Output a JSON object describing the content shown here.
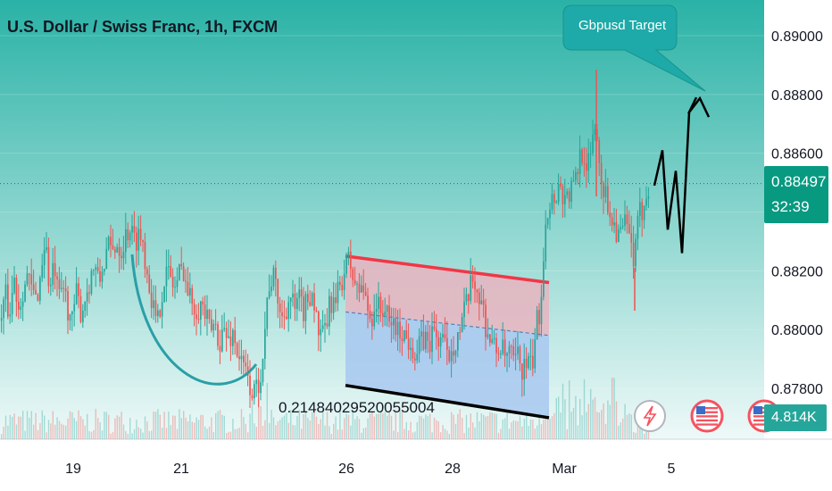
{
  "header": {
    "title": "U.S. Dollar / Swiss Franc, 1h, FXCM"
  },
  "current_price": {
    "value": "0.88497",
    "countdown": "32:39"
  },
  "volume_badge": {
    "value": "4.814K"
  },
  "annotation": {
    "callout_text": "Gbpusd Target",
    "flag_label": "0.21484029520055004"
  },
  "colors": {
    "up": "#26a69a",
    "down": "#ef5350",
    "accent": "#2ab0a6",
    "channel_top": "#f23645",
    "channel_fill_top": "#e8b4c0",
    "channel_fill_bottom": "#a8c8f0"
  },
  "icons": [
    "lightning-event-icon",
    "us-flag-event-icon",
    "us-flag-event-icon"
  ],
  "chart_data": {
    "type": "candlestick",
    "title": "U.S. Dollar / Swiss Franc, 1h, FXCM",
    "x_tick_labels": [
      "19",
      "21",
      "26",
      "28",
      "Mar",
      "5"
    ],
    "y_tick_labels": [
      "0.89000",
      "0.88800",
      "0.88600",
      "0.88400",
      "0.88200",
      "0.88000",
      "0.87800"
    ],
    "ylim": [
      0.8775,
      0.8906
    ],
    "price_path": [
      [
        0,
        0.8803
      ],
      [
        5,
        0.8812
      ],
      [
        10,
        0.8805
      ],
      [
        15,
        0.8818
      ],
      [
        20,
        0.8808
      ],
      [
        25,
        0.8814
      ],
      [
        30,
        0.8818
      ],
      [
        35,
        0.8813
      ],
      [
        40,
        0.881
      ],
      [
        45,
        0.8819
      ],
      [
        50,
        0.8832
      ],
      [
        55,
        0.8812
      ],
      [
        60,
        0.8822
      ],
      [
        65,
        0.8809
      ],
      [
        70,
        0.8815
      ],
      [
        75,
        0.8808
      ],
      [
        80,
        0.8802
      ],
      [
        85,
        0.8812
      ],
      [
        90,
        0.8806
      ],
      [
        95,
        0.8811
      ],
      [
        100,
        0.8817
      ],
      [
        105,
        0.8822
      ],
      [
        110,
        0.8815
      ],
      [
        115,
        0.8822
      ],
      [
        120,
        0.8828
      ],
      [
        125,
        0.8826
      ],
      [
        130,
        0.883
      ],
      [
        135,
        0.8827
      ],
      [
        140,
        0.8832
      ],
      [
        145,
        0.8835
      ],
      [
        150,
        0.883
      ],
      [
        155,
        0.8833
      ],
      [
        160,
        0.8829
      ],
      [
        165,
        0.8818
      ],
      [
        170,
        0.881
      ],
      [
        175,
        0.88
      ],
      [
        180,
        0.8812
      ],
      [
        185,
        0.882
      ],
      [
        190,
        0.8818
      ],
      [
        195,
        0.8814
      ],
      [
        200,
        0.8819
      ],
      [
        205,
        0.8821
      ],
      [
        210,
        0.8812
      ],
      [
        215,
        0.881
      ],
      [
        220,
        0.8807
      ],
      [
        225,
        0.8809
      ],
      [
        230,
        0.8804
      ],
      [
        235,
        0.8799
      ],
      [
        240,
        0.8802
      ],
      [
        245,
        0.8796
      ],
      [
        250,
        0.88
      ],
      [
        255,
        0.8796
      ],
      [
        260,
        0.8799
      ],
      [
        265,
        0.8793
      ],
      [
        270,
        0.8788
      ],
      [
        275,
        0.8785
      ],
      [
        280,
        0.878
      ],
      [
        285,
        0.8778
      ],
      [
        290,
        0.8783
      ],
      [
        295,
        0.8796
      ],
      [
        300,
        0.8815
      ],
      [
        305,
        0.8818
      ],
      [
        310,
        0.8812
      ],
      [
        315,
        0.8803
      ],
      [
        320,
        0.8808
      ],
      [
        325,
        0.8811
      ],
      [
        330,
        0.8806
      ],
      [
        335,
        0.881
      ],
      [
        340,
        0.8806
      ],
      [
        345,
        0.8812
      ],
      [
        350,
        0.8813
      ],
      [
        355,
        0.88
      ],
      [
        360,
        0.8796
      ],
      [
        365,
        0.8802
      ],
      [
        370,
        0.881
      ],
      [
        375,
        0.8808
      ],
      [
        380,
        0.8815
      ],
      [
        385,
        0.882
      ],
      [
        390,
        0.8824
      ],
      [
        395,
        0.8818
      ],
      [
        400,
        0.8812
      ],
      [
        405,
        0.8816
      ],
      [
        410,
        0.8808
      ],
      [
        415,
        0.8803
      ],
      [
        420,
        0.881
      ],
      [
        425,
        0.8806
      ],
      [
        430,
        0.8808
      ],
      [
        435,
        0.8801
      ],
      [
        440,
        0.8803
      ],
      [
        445,
        0.8799
      ],
      [
        450,
        0.88
      ],
      [
        455,
        0.8796
      ],
      [
        460,
        0.8797
      ],
      [
        465,
        0.879
      ],
      [
        470,
        0.8795
      ],
      [
        475,
        0.8797
      ],
      [
        480,
        0.8795
      ],
      [
        485,
        0.88
      ],
      [
        490,
        0.8796
      ],
      [
        495,
        0.8798
      ],
      [
        500,
        0.879
      ],
      [
        505,
        0.8794
      ],
      [
        510,
        0.8797
      ],
      [
        515,
        0.88
      ],
      [
        520,
        0.8806
      ],
      [
        525,
        0.8812
      ],
      [
        530,
        0.8818
      ],
      [
        535,
        0.8812
      ],
      [
        540,
        0.8808
      ],
      [
        545,
        0.8799
      ],
      [
        550,
        0.8796
      ],
      [
        555,
        0.8792
      ],
      [
        560,
        0.8795
      ],
      [
        565,
        0.879
      ],
      [
        570,
        0.8792
      ],
      [
        575,
        0.8788
      ],
      [
        580,
        0.8791
      ],
      [
        585,
        0.8786
      ],
      [
        590,
        0.8789
      ],
      [
        595,
        0.8786
      ],
      [
        600,
        0.8801
      ],
      [
        605,
        0.8808
      ],
      [
        610,
        0.8838
      ],
      [
        615,
        0.8843
      ],
      [
        620,
        0.8845
      ],
      [
        625,
        0.8849
      ],
      [
        630,
        0.8846
      ],
      [
        635,
        0.8845
      ],
      [
        640,
        0.8848
      ],
      [
        645,
        0.8851
      ],
      [
        650,
        0.8862
      ],
      [
        655,
        0.8858
      ],
      [
        660,
        0.8855
      ],
      [
        665,
        0.8872
      ],
      [
        670,
        0.886
      ],
      [
        675,
        0.8848
      ],
      [
        680,
        0.8843
      ],
      [
        685,
        0.8838
      ],
      [
        690,
        0.8834
      ],
      [
        695,
        0.8832
      ],
      [
        700,
        0.8836
      ],
      [
        705,
        0.883
      ],
      [
        710,
        0.8823
      ],
      [
        715,
        0.8838
      ],
      [
        720,
        0.8842
      ],
      [
        725,
        0.8849
      ],
      [
        727,
        0.885
      ]
    ],
    "projection_path": [
      [
        733,
        0.8849
      ],
      [
        742,
        0.8861
      ],
      [
        748,
        0.8834
      ],
      [
        757,
        0.8854
      ],
      [
        764,
        0.8826
      ],
      [
        772,
        0.8874
      ],
      [
        780,
        0.8879
      ]
    ],
    "smile_curve": {
      "from": [
        0,
        0.8855
      ],
      "to": [
        297,
        0.878
      ]
    },
    "channel": {
      "top_line": [
        [
          387,
          0.8825
        ],
        [
          615,
          0.8816
        ]
      ],
      "bottom_line": [
        [
          387,
          0.8781
        ],
        [
          615,
          0.877
        ]
      ],
      "mid_line": [
        [
          387,
          0.8806
        ],
        [
          615,
          0.8798
        ]
      ]
    },
    "target_callout": {
      "text": "Gbpusd Target",
      "points_to": [
        790,
        0.888
      ]
    }
  }
}
